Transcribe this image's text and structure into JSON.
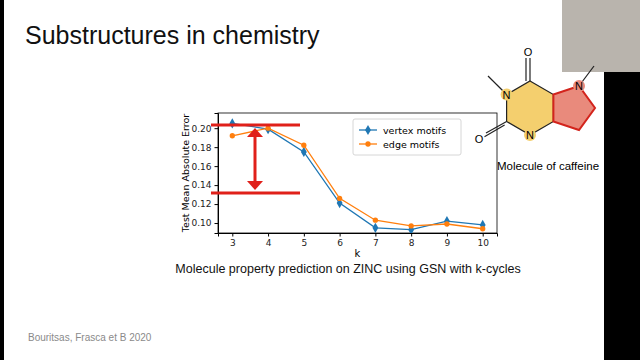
{
  "chart_data": {
    "type": "line",
    "x_label": "k",
    "y_label": "Test Mean Absolute Error",
    "x": [
      3,
      4,
      5,
      6,
      7,
      8,
      9,
      10
    ],
    "series": [
      {
        "name": "vertex motifs",
        "color": "#1f77b4",
        "marker": "diamond",
        "values": [
          0.205,
          0.199,
          0.175,
          0.121,
          0.095,
          0.093,
          0.102,
          0.098
        ]
      },
      {
        "name": "edge motifs",
        "color": "#ff7f0e",
        "marker": "circle",
        "values": [
          0.192,
          0.2,
          0.182,
          0.126,
          0.103,
          0.097,
          0.099,
          0.094
        ]
      }
    ],
    "xlim": [
      2.6,
      10.4
    ],
    "xticks": [
      3,
      4,
      5,
      6,
      7,
      8,
      9,
      10
    ],
    "ylim": [
      0.0895,
      0.216
    ],
    "yticks": [
      {
        "value": 0.1,
        "label": "0.10"
      },
      0.12,
      0.14,
      0.16,
      0.18,
      {
        "value": 0.2,
        "label": "0.20"
      }
    ],
    "grid": false,
    "legend": "upper right"
  },
  "slide": {
    "title": "Substructures in chemistry",
    "caption": "Molecule property prediction on ZINC using GSN with k-cycles",
    "molecule_label": "Molecule of caffeine",
    "citation": "Bouritsas, Frasca et B 2020",
    "atoms": [
      "O",
      "N",
      "O",
      "N",
      "N"
    ]
  }
}
